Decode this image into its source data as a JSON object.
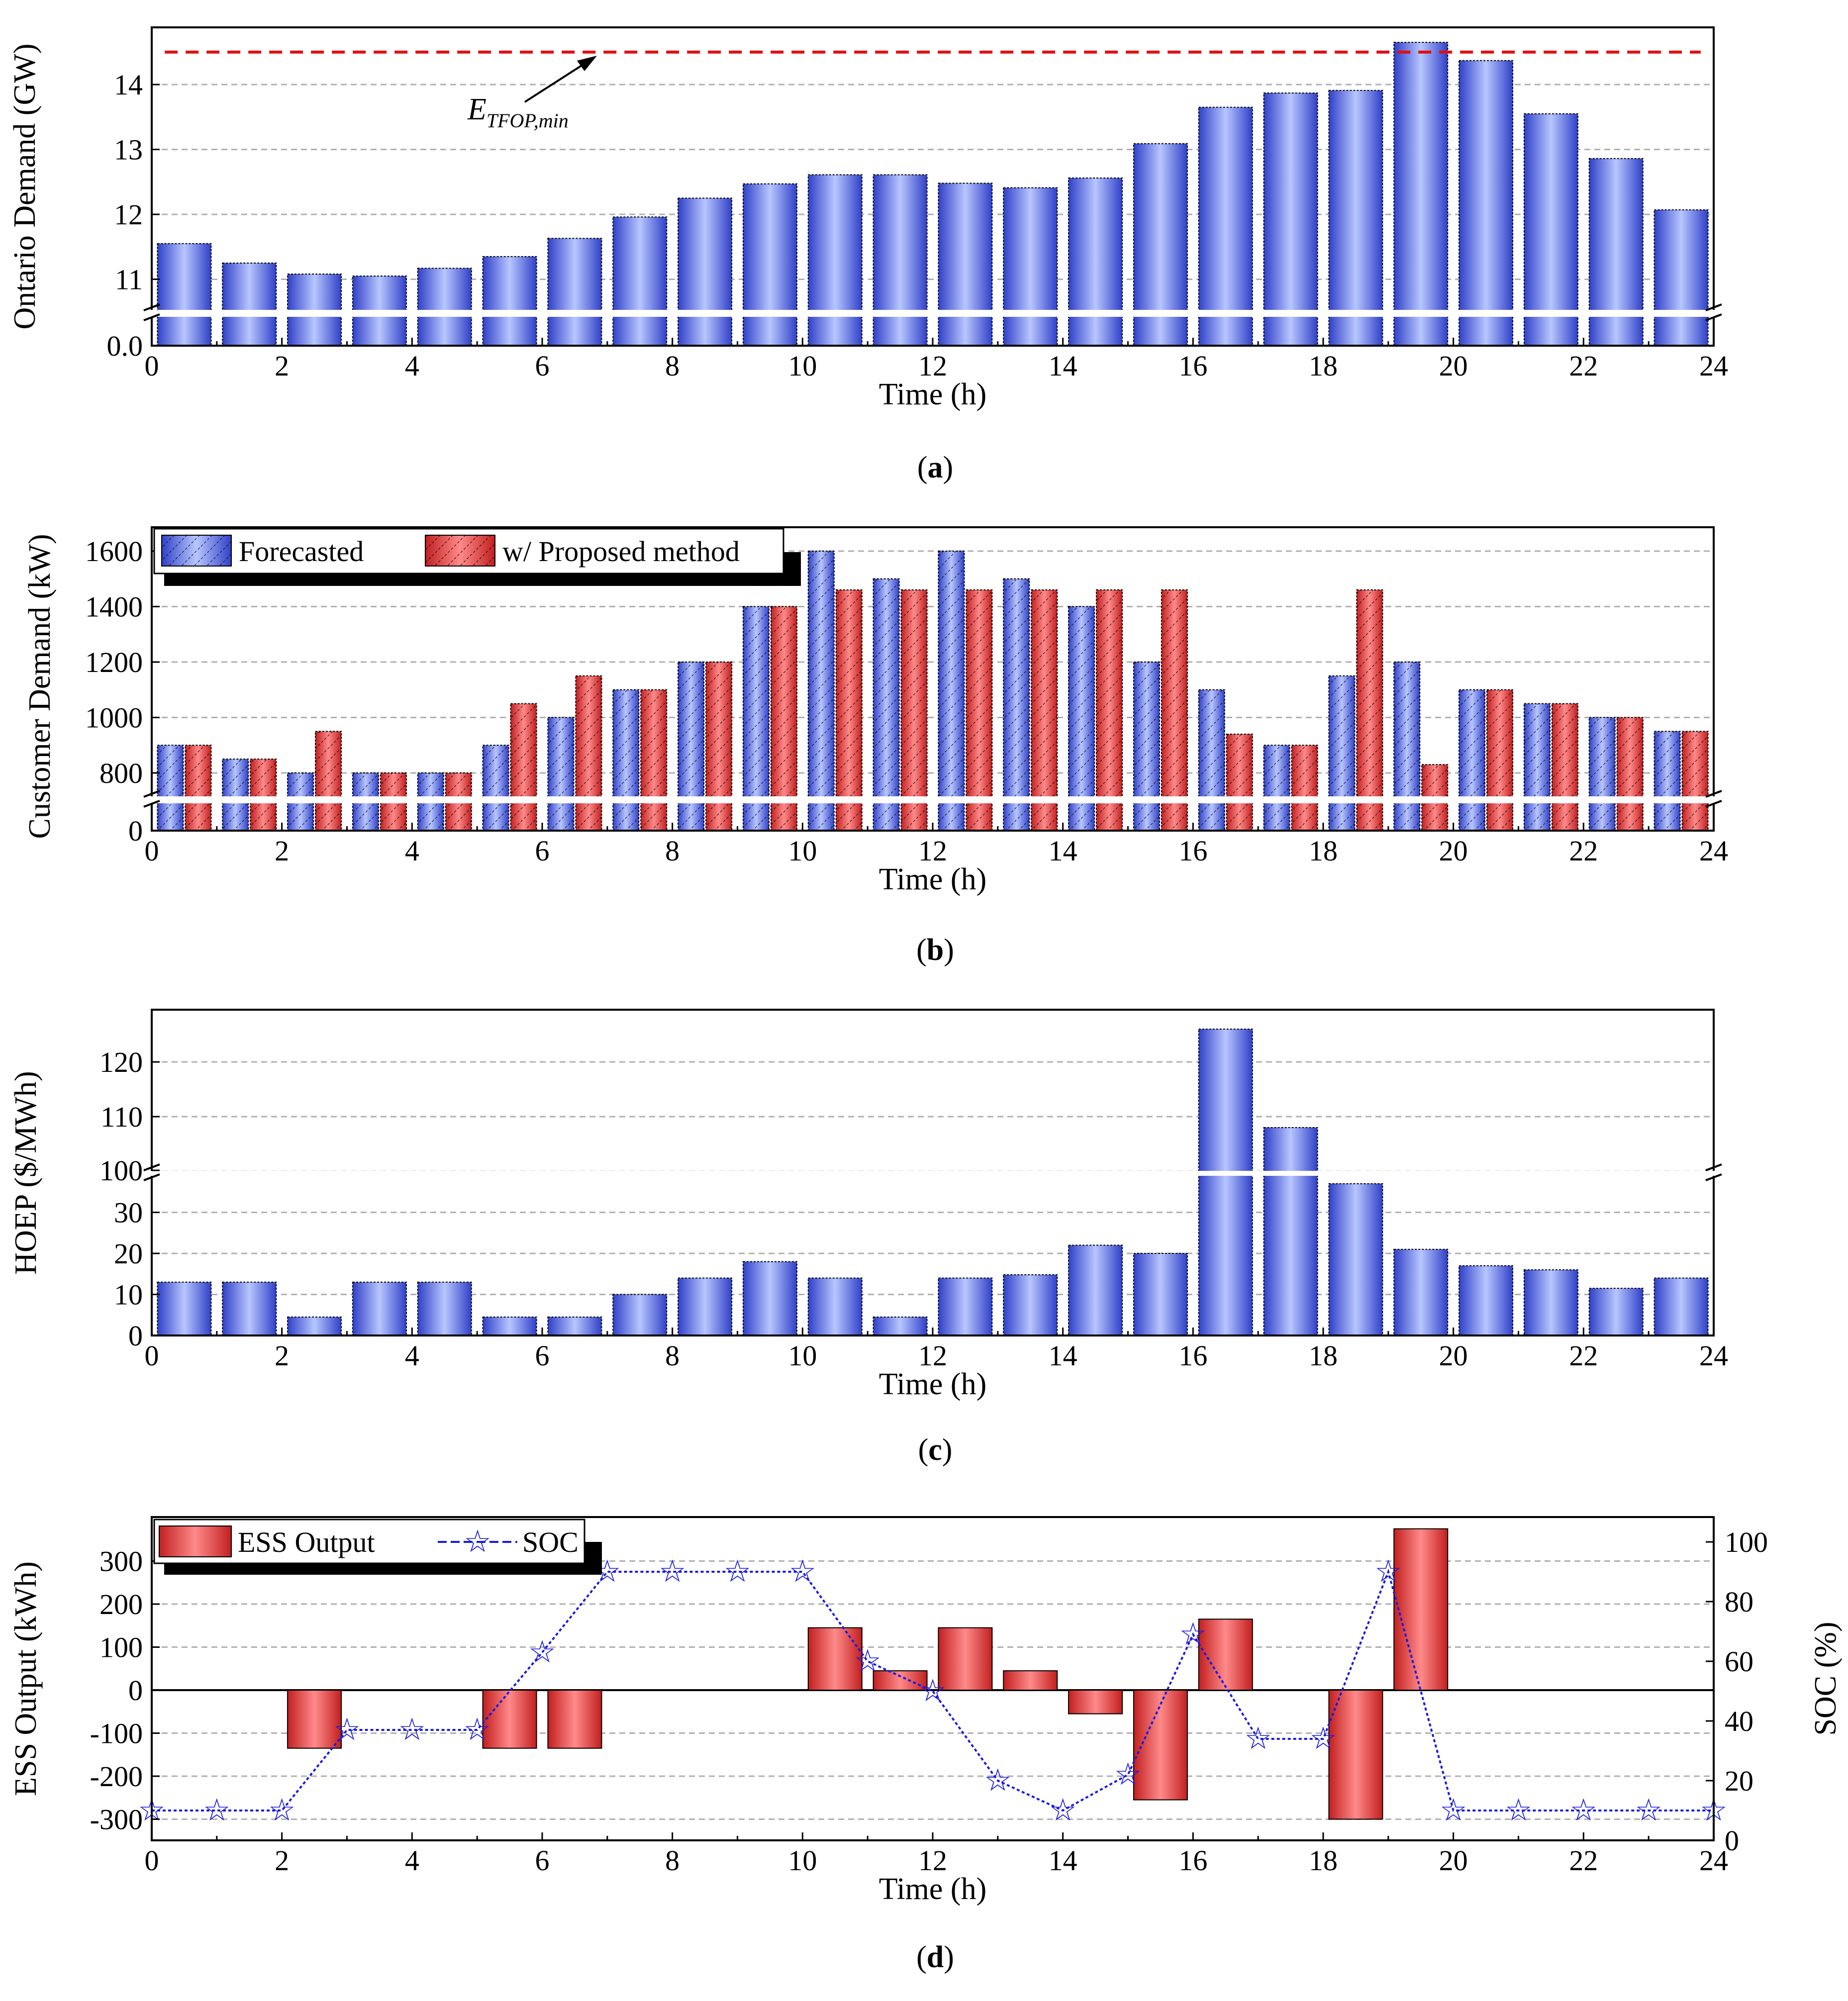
{
  "colors": {
    "blue_dark": "#2f40c8",
    "blue_light": "#b8c6ff",
    "red_dark": "#c21f1f",
    "red_light": "#ff8a8a",
    "min_line": "#e01010",
    "soc_line": "#1a1ae0",
    "grid": "#b0b0b0"
  },
  "chart_data": [
    {
      "id": "a",
      "type": "bar",
      "panel_label": "a",
      "title": "",
      "xlabel": "Time (h)",
      "ylabel": "Ontario Demand (GW)",
      "x": [
        0.5,
        1.5,
        2.5,
        3.5,
        4.5,
        5.5,
        6.5,
        7.5,
        8.5,
        9.5,
        10.5,
        11.5,
        12.5,
        13.5,
        14.5,
        15.5,
        16.5,
        17.5,
        18.5,
        19.5,
        20.5,
        21.5,
        22.5,
        23.5
      ],
      "values": [
        11.55,
        11.25,
        11.08,
        11.05,
        11.17,
        11.35,
        11.63,
        11.96,
        12.25,
        12.47,
        12.61,
        12.61,
        12.48,
        12.41,
        12.56,
        13.09,
        13.65,
        13.87,
        13.91,
        14.65,
        14.37,
        13.55,
        12.86,
        12.07
      ],
      "xlim": [
        0,
        24
      ],
      "xticks": [
        "0",
        "2",
        "4",
        "6",
        "8",
        "10",
        "12",
        "14",
        "16",
        "18",
        "20",
        "22",
        "24"
      ],
      "ylim": [
        10.5,
        14.9
      ],
      "axis_break": true,
      "yticks": [
        "0.0",
        "11",
        "12",
        "13",
        "14"
      ],
      "reference_line": {
        "value": 14.5,
        "label_main": "E",
        "label_sub": "TFOP,min"
      }
    },
    {
      "id": "b",
      "type": "bar",
      "panel_label": "b",
      "title": "",
      "xlabel": "Time (h)",
      "ylabel": "Customer Demand (kW)",
      "x": [
        0.5,
        1.5,
        2.5,
        3.5,
        4.5,
        5.5,
        6.5,
        7.5,
        8.5,
        9.5,
        10.5,
        11.5,
        12.5,
        13.5,
        14.5,
        15.5,
        16.5,
        17.5,
        18.5,
        19.5,
        20.5,
        21.5,
        22.5,
        23.5
      ],
      "series": [
        {
          "name": "Forecasted",
          "values": [
            900,
            850,
            800,
            800,
            800,
            900,
            1000,
            1100,
            1200,
            1400,
            1600,
            1500,
            1600,
            1500,
            1400,
            1200,
            1100,
            900,
            1150,
            1200,
            1100,
            1050,
            1000,
            950
          ]
        },
        {
          "name": "w/ Proposed method",
          "values": [
            900,
            850,
            950,
            800,
            800,
            1050,
            1150,
            1100,
            1200,
            1400,
            1460,
            1460,
            1460,
            1460,
            1460,
            1460,
            940,
            900,
            1460,
            830,
            1100,
            1050,
            1000,
            950
          ]
        }
      ],
      "xlim": [
        0,
        24
      ],
      "xticks": [
        "0",
        "2",
        "4",
        "6",
        "8",
        "10",
        "12",
        "14",
        "16",
        "18",
        "20",
        "22",
        "24"
      ],
      "ylim": [
        600,
        1700
      ],
      "axis_break": true,
      "yticks": [
        "0",
        "800",
        "1000",
        "1200",
        "1400",
        "1600"
      ]
    },
    {
      "id": "c",
      "type": "bar",
      "panel_label": "c",
      "title": "",
      "xlabel": "Time (h)",
      "ylabel": "HOEP ($/MWh)",
      "x": [
        0.5,
        1.5,
        2.5,
        3.5,
        4.5,
        5.5,
        6.5,
        7.5,
        8.5,
        9.5,
        10.5,
        11.5,
        12.5,
        13.5,
        14.5,
        15.5,
        16.5,
        17.5,
        18.5,
        19.5,
        20.5,
        21.5,
        22.5,
        23.5
      ],
      "values": [
        13,
        13,
        4.5,
        13,
        13,
        4.5,
        4.5,
        10,
        14,
        18,
        14,
        4.5,
        14,
        14.8,
        22,
        20,
        126,
        108,
        37,
        21,
        17,
        16,
        11.5,
        14
      ],
      "xlim": [
        0,
        24
      ],
      "xticks": [
        "0",
        "2",
        "4",
        "6",
        "8",
        "10",
        "12",
        "14",
        "16",
        "18",
        "20",
        "22",
        "24"
      ],
      "ylim_lower": [
        0,
        40
      ],
      "ylim_upper": [
        100,
        128
      ],
      "axis_break": true,
      "yticks": [
        "0",
        "10",
        "20",
        "30",
        "100",
        "110",
        "120"
      ]
    },
    {
      "id": "d",
      "type": "bar",
      "panel_label": "d",
      "title": "",
      "xlabel": "Time (h)",
      "ylabel": "ESS Output (kWh)",
      "y2label": "SOC (%)",
      "x": [
        0.5,
        1.5,
        2.5,
        3.5,
        4.5,
        5.5,
        6.5,
        7.5,
        8.5,
        9.5,
        10.5,
        11.5,
        12.5,
        13.5,
        14.5,
        15.5,
        16.5,
        17.5,
        18.5,
        19.5,
        20.5,
        21.5,
        22.5,
        23.5
      ],
      "series": [
        {
          "name": "ESS Output",
          "type": "bar",
          "values": [
            0,
            0,
            -135,
            0,
            0,
            -135,
            -135,
            0,
            0,
            0,
            145,
            45,
            145,
            45,
            -55,
            -255,
            165,
            0,
            -300,
            375,
            0,
            0,
            0,
            0
          ]
        },
        {
          "name": "SOC",
          "type": "line",
          "x": [
            0,
            1,
            2,
            3,
            4,
            5,
            6,
            7,
            8,
            9,
            10,
            11,
            12,
            13,
            14,
            15,
            16,
            17,
            18,
            19,
            20,
            21,
            22,
            23,
            24
          ],
          "values": [
            10,
            10,
            10,
            37,
            37,
            37,
            63,
            90,
            90,
            90,
            90,
            60,
            50,
            20,
            10,
            22,
            69,
            34,
            34,
            90,
            10,
            10,
            10,
            10,
            10
          ]
        }
      ],
      "xlim": [
        0,
        24
      ],
      "xticks": [
        "0",
        "2",
        "4",
        "6",
        "8",
        "10",
        "12",
        "14",
        "16",
        "18",
        "20",
        "22",
        "24"
      ],
      "ylim": [
        -345,
        395
      ],
      "yticks": [
        "-300",
        "-200",
        "-100",
        "0",
        "100",
        "200",
        "300"
      ],
      "y2lim": [
        0,
        105
      ],
      "y2ticks": [
        "0",
        "20",
        "40",
        "60",
        "80",
        "100"
      ]
    }
  ]
}
